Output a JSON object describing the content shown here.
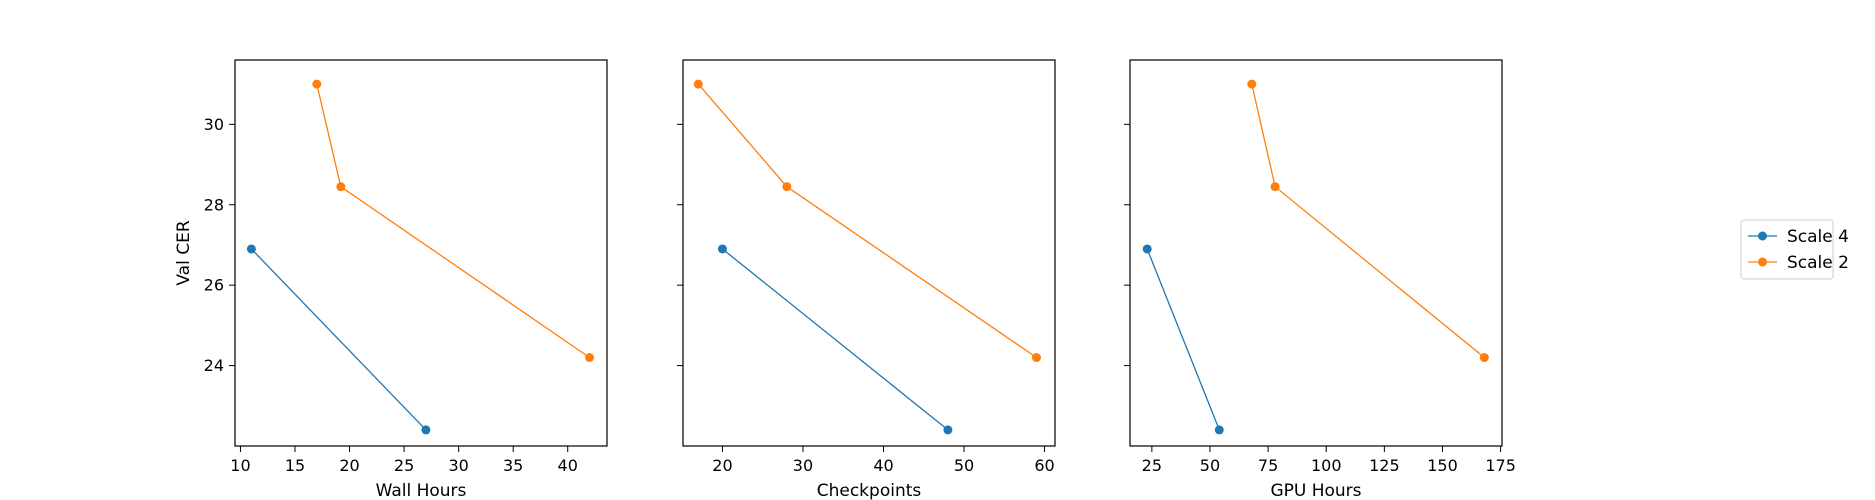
{
  "chart_data": [
    {
      "type": "line",
      "xlabel": "Wall Hours",
      "ylabel": "Val CER",
      "xlim": [
        9.5,
        43.6
      ],
      "ylim": [
        22.0,
        31.6
      ],
      "xticks": [
        10,
        15,
        20,
        25,
        30,
        35,
        40
      ],
      "yticks": [
        24,
        26,
        28,
        30
      ],
      "series": [
        {
          "name": "Scale 4",
          "x": [
            11.0,
            27.0
          ],
          "y": [
            26.9,
            22.4
          ]
        },
        {
          "name": "Scale 2",
          "x": [
            17.0,
            19.2,
            42.0
          ],
          "y": [
            31.0,
            28.45,
            24.2
          ]
        }
      ]
    },
    {
      "type": "line",
      "xlabel": "Checkpoints",
      "ylabel": "",
      "xlim": [
        15.1,
        61.3
      ],
      "ylim": [
        22.0,
        31.6
      ],
      "xticks": [
        20,
        30,
        40,
        50,
        60
      ],
      "yticks": [
        24,
        26,
        28,
        30
      ],
      "series": [
        {
          "name": "Scale 4",
          "x": [
            20.0,
            48.0
          ],
          "y": [
            26.9,
            22.4
          ]
        },
        {
          "name": "Scale 2",
          "x": [
            17.0,
            28.0,
            59.0
          ],
          "y": [
            31.0,
            28.45,
            24.2
          ]
        }
      ]
    },
    {
      "type": "line",
      "xlabel": "GPU Hours",
      "ylabel": "",
      "xlim": [
        15.6,
        175.6
      ],
      "ylim": [
        22.0,
        31.6
      ],
      "xticks": [
        25,
        50,
        75,
        100,
        125,
        150,
        175
      ],
      "yticks": [
        24,
        26,
        28,
        30
      ],
      "series": [
        {
          "name": "Scale 4",
          "x": [
            23.0,
            54.0
          ],
          "y": [
            26.9,
            22.4
          ]
        },
        {
          "name": "Scale 2",
          "x": [
            68.0,
            78.0,
            168.0
          ],
          "y": [
            31.0,
            28.45,
            24.2
          ]
        }
      ]
    }
  ],
  "legend": {
    "placement": "right",
    "entries": [
      {
        "name": "Scale 4",
        "color": "#1f77b4"
      },
      {
        "name": "Scale 2",
        "color": "#ff7f0e"
      }
    ]
  }
}
